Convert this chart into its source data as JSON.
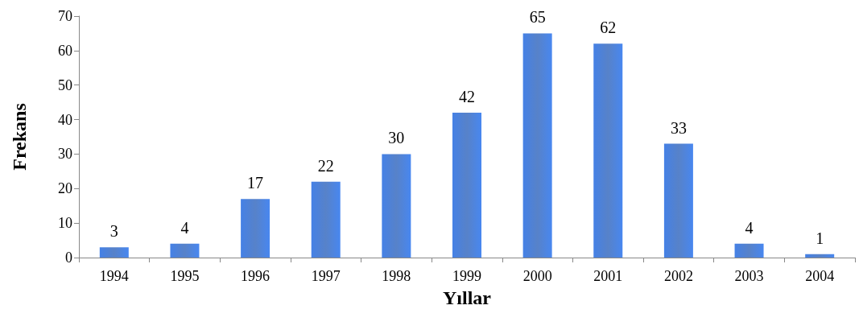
{
  "chart_data": {
    "type": "bar",
    "xlabel": "Yıllar",
    "ylabel": "Frekans",
    "categories": [
      "1994",
      "1995",
      "1996",
      "1997",
      "1998",
      "1999",
      "2000",
      "2001",
      "2002",
      "2003",
      "2004"
    ],
    "values": [
      3,
      4,
      17,
      22,
      30,
      42,
      65,
      62,
      33,
      4,
      1
    ],
    "color": "#3a6cc0",
    "ylim": [
      0,
      70
    ],
    "yticks": [
      0,
      10,
      20,
      30,
      40,
      50,
      60,
      70
    ],
    "grid": false,
    "data_labels": true
  }
}
